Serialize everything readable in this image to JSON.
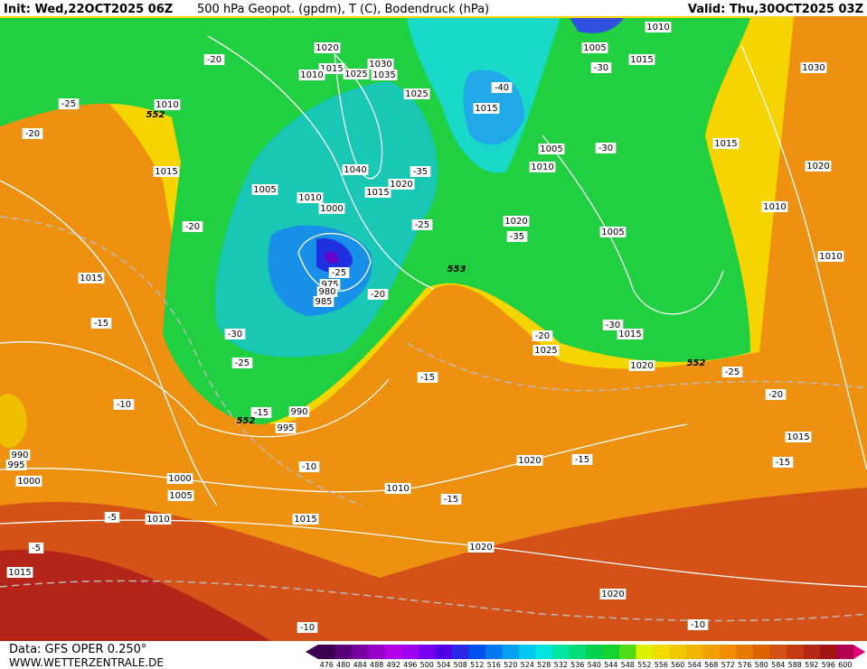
{
  "header": {
    "init": "Init: Wed,22OCT2025 06Z",
    "title": "500 hPa Geopot. (gpdm), T (C), Bodendruck (hPa)",
    "valid": "Valid: Thu,30OCT2025 03Z"
  },
  "footer": {
    "data": "Data: GFS OPER 0.250°",
    "site": "WWW.WETTERZENTRALE.DE"
  },
  "colorbar": {
    "labels": [
      476,
      480,
      484,
      488,
      492,
      496,
      500,
      504,
      508,
      512,
      516,
      520,
      524,
      528,
      532,
      536,
      540,
      544,
      548,
      552,
      556,
      560,
      564,
      568,
      572,
      576,
      580,
      584,
      588,
      592,
      596,
      600
    ],
    "colors": [
      "#3c0050",
      "#5a0078",
      "#7800a0",
      "#9600c8",
      "#b400e6",
      "#a000f0",
      "#7800f0",
      "#5000e6",
      "#2828e6",
      "#0050f0",
      "#0078f0",
      "#00a0f0",
      "#00c8f0",
      "#00e6dc",
      "#00e6a0",
      "#00dc78",
      "#00d250",
      "#14d232",
      "#50dc14",
      "#dcf000",
      "#f0dc00",
      "#f0c800",
      "#f0b400",
      "#f0a000",
      "#f08c00",
      "#e67800",
      "#dc6400",
      "#d25014",
      "#c83c14",
      "#b42814",
      "#a01414",
      "#b40050"
    ]
  },
  "map": {
    "pressure_labels": [
      "1020",
      "1015",
      "1010",
      "1025",
      "1030",
      "1035",
      "1025",
      "1010",
      "1015",
      "1040",
      "1005",
      "1010",
      "1000",
      "1015",
      "1020",
      "1015",
      "1005",
      "1010",
      "1020",
      "1005",
      "1015",
      "1015",
      "1025",
      "1020",
      "975",
      "980",
      "985",
      "990",
      "995",
      "1005",
      "1010",
      "1015",
      "1030",
      "1015",
      "1020",
      "1010",
      "1010",
      "1015",
      "1000",
      "1005",
      "1010",
      "1020",
      "1015",
      "1010",
      "1020",
      "1020",
      "990",
      "995",
      "1000",
      "1015"
    ],
    "temperature_labels": [
      "-20",
      "-25",
      "-20",
      "-20",
      "-35",
      "-25",
      "-35",
      "-40",
      "-30",
      "-30",
      "-25",
      "-20",
      "-30",
      "-25",
      "-15",
      "-15",
      "-10",
      "-10",
      "-15",
      "-20",
      "-25",
      "-20",
      "-15",
      "-15",
      "-15",
      "-5",
      "-5",
      "-10",
      "-10",
      "-30"
    ],
    "height_labels": [
      "552",
      "553",
      "552",
      "552"
    ]
  }
}
